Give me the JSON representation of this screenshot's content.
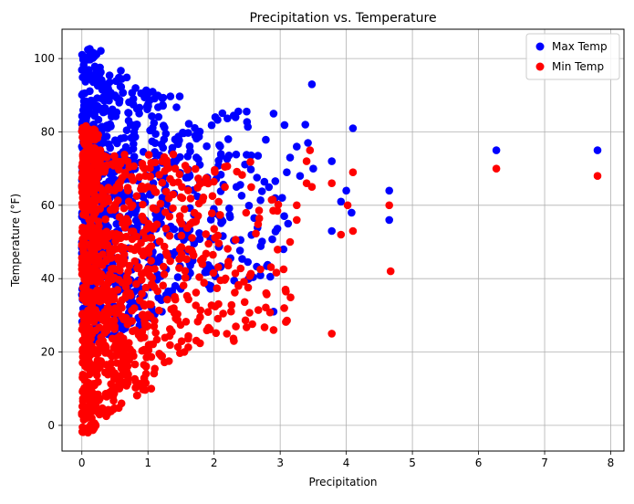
{
  "chart_data": {
    "type": "scatter",
    "title": "Precipitation vs. Temperature",
    "xlabel": "Precipitation",
    "ylabel": "Temperature (°F)",
    "xlim": [
      -0.3,
      8.2
    ],
    "ylim": [
      -7,
      108
    ],
    "xticks": [
      0,
      1,
      2,
      3,
      4,
      5,
      6,
      7,
      8
    ],
    "xtick_labels": [
      "0",
      "1",
      "2",
      "3",
      "4",
      "5",
      "6",
      "7",
      "8"
    ],
    "yticks": [
      0,
      20,
      40,
      60,
      80,
      100
    ],
    "ytick_labels": [
      "0",
      "20",
      "40",
      "60",
      "80",
      "100"
    ],
    "grid": true,
    "legend_position": "top-right",
    "series": [
      {
        "name": "Max Temp",
        "color": "#0000ff",
        "bands": [
          {
            "x": [
              0,
              0.3
            ],
            "y": [
              22,
              103
            ],
            "n": 320
          },
          {
            "x": [
              0.3,
              0.7
            ],
            "y": [
              24,
              97
            ],
            "n": 200
          },
          {
            "x": [
              0.7,
              1.1
            ],
            "y": [
              27,
              93
            ],
            "n": 140
          },
          {
            "x": [
              1.1,
              1.6
            ],
            "y": [
              30,
              90
            ],
            "n": 100
          },
          {
            "x": [
              1.6,
              2.1
            ],
            "y": [
              35,
              85
            ],
            "n": 70
          },
          {
            "x": [
              2.1,
              2.6
            ],
            "y": [
              38,
              87
            ],
            "n": 45
          },
          {
            "x": [
              2.6,
              3.1
            ],
            "y": [
              40,
              85
            ],
            "n": 24
          }
        ],
        "points": [
          {
            "x": 3.48,
            "y": 93
          },
          {
            "x": 3.38,
            "y": 82
          },
          {
            "x": 3.42,
            "y": 77
          },
          {
            "x": 3.5,
            "y": 70
          },
          {
            "x": 3.25,
            "y": 76
          },
          {
            "x": 3.15,
            "y": 73
          },
          {
            "x": 3.1,
            "y": 69
          },
          {
            "x": 3.05,
            "y": 48
          },
          {
            "x": 3.12,
            "y": 55
          },
          {
            "x": 2.9,
            "y": 31
          },
          {
            "x": 2.9,
            "y": 85
          },
          {
            "x": 3.3,
            "y": 68
          },
          {
            "x": 3.78,
            "y": 72
          },
          {
            "x": 3.78,
            "y": 53
          },
          {
            "x": 3.92,
            "y": 61
          },
          {
            "x": 4.0,
            "y": 64
          },
          {
            "x": 4.1,
            "y": 81
          },
          {
            "x": 4.08,
            "y": 58
          },
          {
            "x": 4.65,
            "y": 64
          },
          {
            "x": 4.65,
            "y": 56
          },
          {
            "x": 6.27,
            "y": 75
          },
          {
            "x": 7.8,
            "y": 75
          }
        ]
      },
      {
        "name": "Min Temp",
        "color": "#ff0000",
        "bands": [
          {
            "x": [
              0,
              0.25
            ],
            "y": [
              -2,
              82
            ],
            "n": 380
          },
          {
            "x": [
              0.25,
              0.6
            ],
            "y": [
              2,
              75
            ],
            "n": 230
          },
          {
            "x": [
              0.6,
              1.0
            ],
            "y": [
              8,
              74
            ],
            "n": 150
          },
          {
            "x": [
              1.0,
              1.5
            ],
            "y": [
              14,
              74
            ],
            "n": 110
          },
          {
            "x": [
              1.5,
              2.0
            ],
            "y": [
              20,
              71
            ],
            "n": 70
          },
          {
            "x": [
              2.0,
              2.6
            ],
            "y": [
              23,
              73
            ],
            "n": 50
          },
          {
            "x": [
              2.6,
              3.2
            ],
            "y": [
              26,
              70
            ],
            "n": 25
          }
        ],
        "points": [
          {
            "x": 3.45,
            "y": 75
          },
          {
            "x": 3.4,
            "y": 72
          },
          {
            "x": 3.4,
            "y": 66
          },
          {
            "x": 3.48,
            "y": 65
          },
          {
            "x": 3.25,
            "y": 60
          },
          {
            "x": 3.25,
            "y": 56
          },
          {
            "x": 3.08,
            "y": 37
          },
          {
            "x": 2.9,
            "y": 26
          },
          {
            "x": 3.15,
            "y": 50
          },
          {
            "x": 3.78,
            "y": 66
          },
          {
            "x": 3.78,
            "y": 25
          },
          {
            "x": 3.92,
            "y": 52
          },
          {
            "x": 4.02,
            "y": 60
          },
          {
            "x": 4.1,
            "y": 69
          },
          {
            "x": 4.1,
            "y": 53
          },
          {
            "x": 4.65,
            "y": 60
          },
          {
            "x": 4.67,
            "y": 42
          },
          {
            "x": 6.27,
            "y": 70
          },
          {
            "x": 7.8,
            "y": 68
          },
          {
            "x": 1.05,
            "y": 10
          },
          {
            "x": 0.6,
            "y": 6
          },
          {
            "x": 0.15,
            "y": 2
          },
          {
            "x": 1.55,
            "y": 20
          },
          {
            "x": 2.3,
            "y": 23
          }
        ]
      }
    ]
  }
}
